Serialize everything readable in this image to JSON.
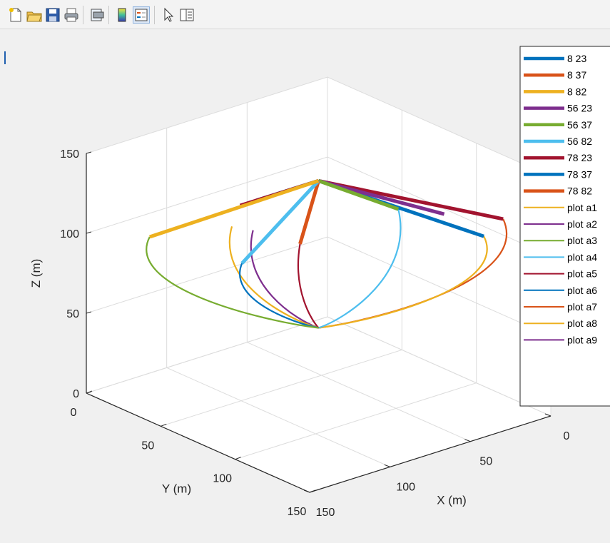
{
  "toolbar": {
    "icons": [
      "new-figure-icon",
      "open-file-icon",
      "save-icon",
      "print-icon",
      "print-preview-icon",
      "colorbar-icon",
      "legend-icon",
      "pointer-icon",
      "property-inspector-icon"
    ]
  },
  "chart_data": {
    "type": "line",
    "projection": "3d",
    "title": "",
    "xlabel": "X (m)",
    "ylabel": "Y (m)",
    "zlabel": "Z (m)",
    "xlim": [
      0,
      150
    ],
    "ylim": [
      0,
      150
    ],
    "zlim": [
      0,
      150
    ],
    "x_ticks": [
      "0",
      "50",
      "100",
      "150"
    ],
    "y_ticks": [
      "0",
      "50",
      "100",
      "150"
    ],
    "z_ticks": [
      "0",
      "50",
      "100",
      "150"
    ],
    "grid": true,
    "legend_position": "top-right",
    "apex": [
      75,
      75,
      140
    ],
    "legend": [
      {
        "label": "8 23",
        "color": "#0072bd",
        "thick": true
      },
      {
        "label": "8 37",
        "color": "#d95319",
        "thick": true
      },
      {
        "label": "8 82",
        "color": "#edb120",
        "thick": true
      },
      {
        "label": "56 23",
        "color": "#7e2f8e",
        "thick": true
      },
      {
        "label": "56 37",
        "color": "#77ac30",
        "thick": true
      },
      {
        "label": "56 82",
        "color": "#4dbeee",
        "thick": true
      },
      {
        "label": "78 23",
        "color": "#a2142f",
        "thick": true
      },
      {
        "label": "78 37",
        "color": "#0072bd",
        "thick": true
      },
      {
        "label": "78 82",
        "color": "#d95319",
        "thick": true
      },
      {
        "label": "plot a1",
        "color": "#edb120",
        "thick": false
      },
      {
        "label": "plot a2",
        "color": "#7e2f8e",
        "thick": false
      },
      {
        "label": "plot a3",
        "color": "#77ac30",
        "thick": false
      },
      {
        "label": "plot a4",
        "color": "#4dbeee",
        "thick": false
      },
      {
        "label": "plot a5",
        "color": "#a2142f",
        "thick": false
      },
      {
        "label": "plot a6",
        "color": "#0072bd",
        "thick": false
      },
      {
        "label": "plot a7",
        "color": "#d95319",
        "thick": false
      },
      {
        "label": "plot a8",
        "color": "#edb120",
        "thick": false
      },
      {
        "label": "plot a9",
        "color": "#7e2f8e",
        "thick": false
      }
    ],
    "arms": [
      {
        "color": "#a2142f",
        "end": [
          0,
          118,
          110
        ]
      },
      {
        "color": "#0072bd",
        "end": [
          12,
          118,
          103
        ]
      },
      {
        "color": "#7e2f8e",
        "end": [
          20,
          100,
          112
        ]
      },
      {
        "color": "#77ac30",
        "end": [
          30,
          80,
          110
        ]
      },
      {
        "color": "#d95319",
        "end": [
          68,
          55,
          90
        ]
      },
      {
        "color": "#4dbeee",
        "end": [
          118,
          70,
          100
        ]
      },
      {
        "color": "#0072bd",
        "end": [
          98,
          58,
          128
        ]
      },
      {
        "color": "#a2142f",
        "end": [
          108,
          58,
          128
        ]
      },
      {
        "color": "#edb120",
        "end": [
          143,
          35,
          110
        ]
      }
    ],
    "curves": [
      {
        "color": "#d95319",
        "from": [
          0,
          118,
          110
        ],
        "to": [
          75,
          75,
          48
        ]
      },
      {
        "color": "#edb120",
        "from": [
          12,
          118,
          103
        ],
        "to": [
          75,
          75,
          48
        ]
      },
      {
        "color": "#4dbeee",
        "from": [
          30,
          80,
          110
        ],
        "to": [
          75,
          75,
          48
        ]
      },
      {
        "color": "#a2142f",
        "from": [
          68,
          55,
          90
        ],
        "to": [
          75,
          75,
          48
        ]
      },
      {
        "color": "#7e2f8e",
        "from": [
          100,
          58,
          110
        ],
        "to": [
          75,
          75,
          48
        ]
      },
      {
        "color": "#edb120",
        "from": [
          115,
          60,
          118
        ],
        "to": [
          75,
          75,
          48
        ]
      },
      {
        "color": "#0072bd",
        "from": [
          118,
          70,
          100
        ],
        "to": [
          75,
          75,
          48
        ]
      },
      {
        "color": "#77ac30",
        "from": [
          143,
          35,
          110
        ],
        "to": [
          75,
          75,
          48
        ]
      }
    ]
  }
}
